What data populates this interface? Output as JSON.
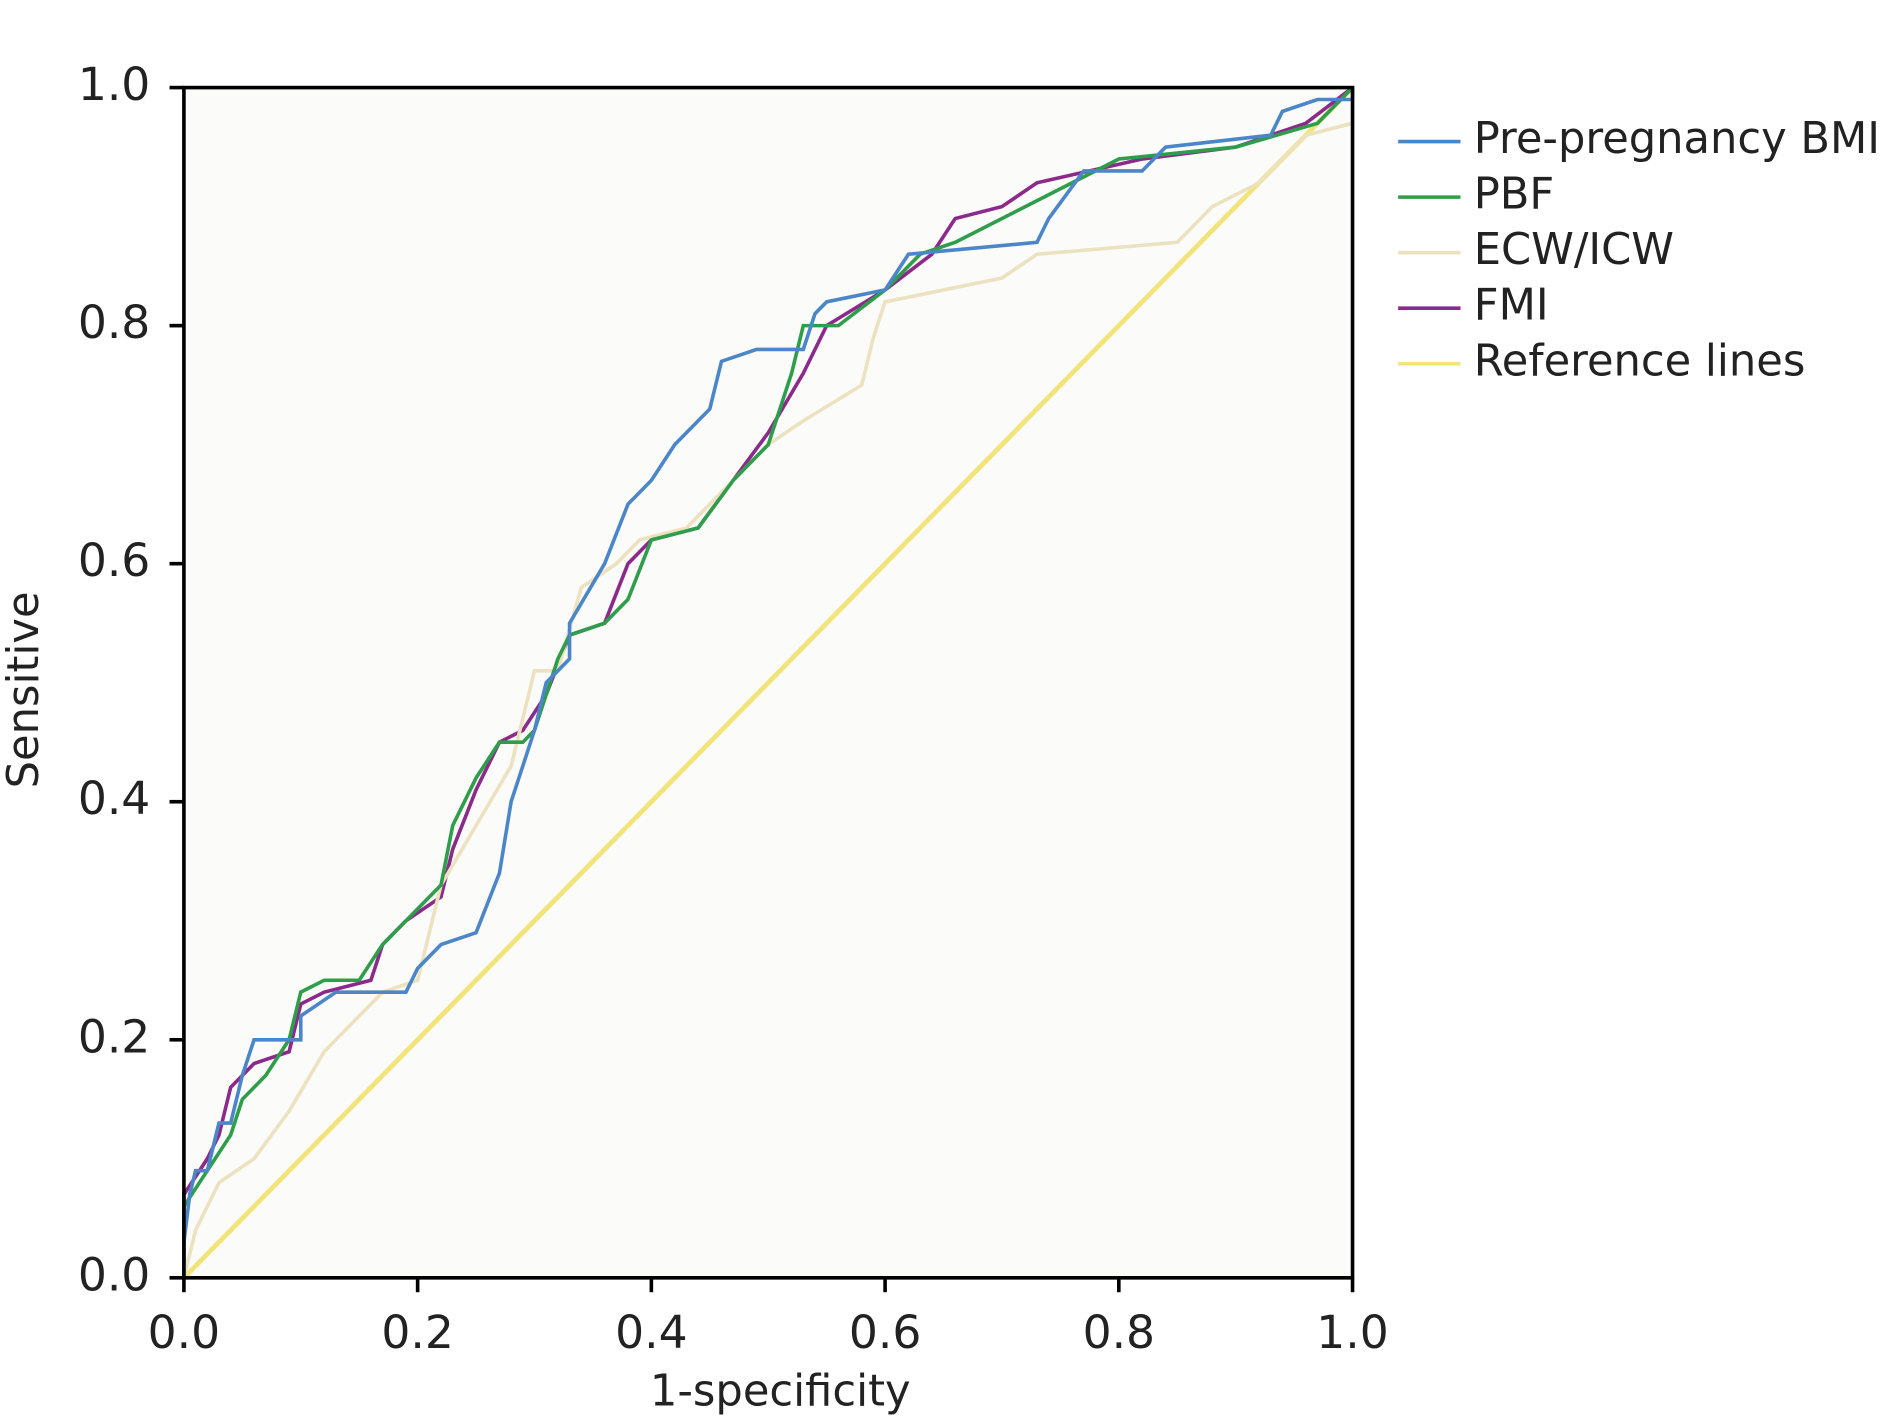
{
  "chart_data": {
    "type": "line",
    "x_label": "1-specificity",
    "y_label": "Sensitive",
    "xlim": [
      0,
      1
    ],
    "ylim": [
      0,
      1
    ],
    "xticks": [
      {
        "value": 0,
        "label": "0.0"
      },
      0.2,
      0.4,
      0.6,
      0.8,
      {
        "value": 1,
        "label": "1.0"
      }
    ],
    "yticks": [
      {
        "value": 0,
        "label": "0.0"
      },
      0.2,
      0.4,
      0.6,
      0.8,
      {
        "value": 1,
        "label": "1.0"
      }
    ],
    "legend": "right",
    "series": [
      {
        "name": "Pre-pregnancy BMI",
        "color": "#4a86c8",
        "x": [
          0,
          0,
          0.005,
          0.01,
          0.02,
          0.03,
          0.04,
          0.05,
          0.06,
          0.1,
          0.1,
          0.13,
          0.19,
          0.2,
          0.22,
          0.25,
          0.27,
          0.28,
          0.3,
          0.31,
          0.33,
          0.33,
          0.36,
          0.38,
          0.4,
          0.42,
          0.45,
          0.46,
          0.49,
          0.53,
          0.54,
          0.55,
          0.6,
          0.62,
          0.73,
          0.74,
          0.77,
          0.82,
          0.84,
          0.93,
          0.94,
          0.97,
          1,
          1
        ],
        "values": [
          0,
          0.03,
          0.07,
          0.09,
          0.09,
          0.13,
          0.13,
          0.17,
          0.2,
          0.2,
          0.22,
          0.24,
          0.24,
          0.26,
          0.28,
          0.29,
          0.34,
          0.4,
          0.46,
          0.5,
          0.52,
          0.55,
          0.6,
          0.65,
          0.67,
          0.7,
          0.73,
          0.77,
          0.78,
          0.78,
          0.81,
          0.82,
          0.83,
          0.86,
          0.87,
          0.89,
          0.93,
          0.93,
          0.95,
          0.96,
          0.98,
          0.99,
          0.99,
          1
        ]
      },
      {
        "name": "PBF",
        "color": "#2e9e4a",
        "x": [
          0,
          0,
          0.02,
          0.04,
          0.05,
          0.07,
          0.09,
          0.1,
          0.12,
          0.15,
          0.17,
          0.2,
          0.22,
          0.23,
          0.25,
          0.27,
          0.29,
          0.3,
          0.32,
          0.33,
          0.36,
          0.38,
          0.4,
          0.44,
          0.47,
          0.5,
          0.52,
          0.53,
          0.56,
          0.6,
          0.63,
          0.66,
          0.72,
          0.8,
          0.9,
          0.97,
          1
        ],
        "values": [
          0,
          0.06,
          0.09,
          0.12,
          0.15,
          0.17,
          0.2,
          0.24,
          0.25,
          0.25,
          0.28,
          0.31,
          0.33,
          0.38,
          0.42,
          0.45,
          0.45,
          0.46,
          0.52,
          0.54,
          0.55,
          0.57,
          0.62,
          0.63,
          0.67,
          0.7,
          0.76,
          0.8,
          0.8,
          0.83,
          0.86,
          0.87,
          0.9,
          0.94,
          0.95,
          0.97,
          1
        ]
      },
      {
        "name": "ECW/ICW",
        "color": "#ece2c0",
        "x": [
          0,
          0.01,
          0.03,
          0.06,
          0.09,
          0.12,
          0.15,
          0.17,
          0.2,
          0.22,
          0.25,
          0.28,
          0.29,
          0.3,
          0.32,
          0.34,
          0.37,
          0.39,
          0.43,
          0.47,
          0.5,
          0.53,
          0.58,
          0.59,
          0.6,
          0.65,
          0.7,
          0.73,
          0.85,
          0.88,
          0.92,
          0.96,
          1,
          1
        ],
        "values": [
          0,
          0.04,
          0.08,
          0.1,
          0.14,
          0.19,
          0.22,
          0.24,
          0.25,
          0.33,
          0.38,
          0.43,
          0.47,
          0.51,
          0.51,
          0.58,
          0.6,
          0.62,
          0.63,
          0.67,
          0.7,
          0.72,
          0.75,
          0.79,
          0.82,
          0.83,
          0.84,
          0.86,
          0.87,
          0.9,
          0.92,
          0.96,
          0.97,
          1
        ]
      },
      {
        "name": "FMI",
        "color": "#8b2a8a",
        "x": [
          0,
          0,
          0.02,
          0.03,
          0.04,
          0.06,
          0.09,
          0.1,
          0.12,
          0.16,
          0.17,
          0.19,
          0.22,
          0.23,
          0.25,
          0.27,
          0.29,
          0.31,
          0.33,
          0.36,
          0.38,
          0.4,
          0.44,
          0.47,
          0.5,
          0.53,
          0.55,
          0.6,
          0.64,
          0.66,
          0.7,
          0.73,
          0.82,
          0.9,
          0.96,
          1
        ],
        "values": [
          0,
          0.07,
          0.1,
          0.12,
          0.16,
          0.18,
          0.19,
          0.23,
          0.24,
          0.25,
          0.28,
          0.3,
          0.32,
          0.36,
          0.41,
          0.45,
          0.46,
          0.49,
          0.54,
          0.55,
          0.6,
          0.62,
          0.63,
          0.67,
          0.71,
          0.76,
          0.8,
          0.83,
          0.86,
          0.89,
          0.9,
          0.92,
          0.94,
          0.95,
          0.97,
          1
        ]
      },
      {
        "name": "Reference lines",
        "color": "#f2e47a",
        "x": [
          0,
          1
        ],
        "values": [
          0,
          1
        ]
      }
    ]
  }
}
